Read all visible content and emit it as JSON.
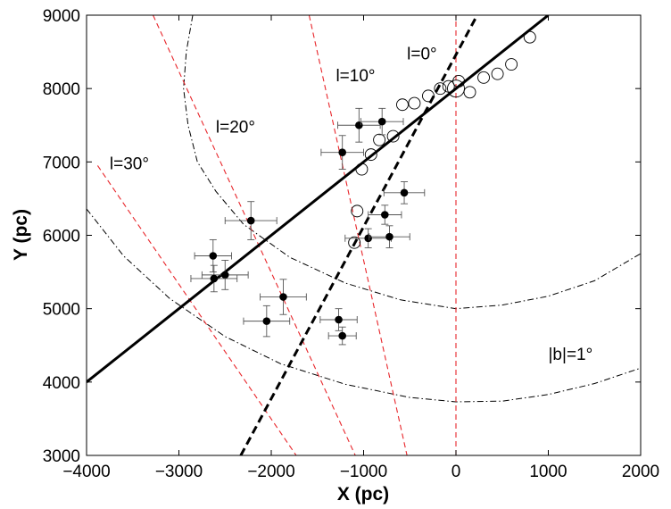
{
  "chart_data": {
    "type": "scatter",
    "xlabel": "X (pc)",
    "ylabel": "Y (pc)",
    "xlim": [
      -4000,
      2000
    ],
    "ylim": [
      3000,
      9000
    ],
    "xticks": [
      -4000,
      -3000,
      -2000,
      -1000,
      0,
      1000,
      2000
    ],
    "yticks": [
      3000,
      4000,
      5000,
      6000,
      7000,
      8000,
      9000
    ],
    "xtick_labels": [
      "−4000",
      "−3000",
      "−2000",
      "−1000",
      "0",
      "1000",
      "2000"
    ],
    "ytick_labels": [
      "3000",
      "4000",
      "5000",
      "6000",
      "7000",
      "8000",
      "9000"
    ],
    "grid": false,
    "sun": {
      "x": 0,
      "y": 8000
    },
    "annotations": [
      {
        "text": "l=0°",
        "x": -530,
        "y": 8400
      },
      {
        "text": "l=10°",
        "x": -1300,
        "y": 8100
      },
      {
        "text": "l=20°",
        "x": -2600,
        "y": 7400
      },
      {
        "text": "l=30°",
        "x": -3750,
        "y": 6900
      },
      {
        "text": "|b|=1°",
        "x": 1000,
        "y": 4300
      }
    ],
    "series": [
      {
        "kind": "filled-errorbar",
        "points": [
          {
            "x": -1050,
            "y": 7500,
            "xerr": 230,
            "yerr": 230
          },
          {
            "x": -800,
            "y": 7550,
            "xerr": 230,
            "yerr": 180
          },
          {
            "x": -1230,
            "y": 7130,
            "xerr": 230,
            "yerr": 230
          },
          {
            "x": -560,
            "y": 6580,
            "xerr": 220,
            "yerr": 150
          },
          {
            "x": -770,
            "y": 6280,
            "xerr": 180,
            "yerr": 130
          },
          {
            "x": -950,
            "y": 5960,
            "xerr": 250,
            "yerr": 130
          },
          {
            "x": -720,
            "y": 5980,
            "xerr": 220,
            "yerr": 150
          },
          {
            "x": -2220,
            "y": 6200,
            "xerr": 280,
            "yerr": 260
          },
          {
            "x": -2630,
            "y": 5720,
            "xerr": 200,
            "yerr": 220
          },
          {
            "x": -2500,
            "y": 5460,
            "xerr": 250,
            "yerr": 200
          },
          {
            "x": -2620,
            "y": 5410,
            "xerr": 250,
            "yerr": 180
          },
          {
            "x": -1870,
            "y": 5160,
            "xerr": 250,
            "yerr": 240
          },
          {
            "x": -2050,
            "y": 4830,
            "xerr": 250,
            "yerr": 210
          },
          {
            "x": -1270,
            "y": 4850,
            "xerr": 200,
            "yerr": 150
          },
          {
            "x": -1230,
            "y": 4630,
            "xerr": 150,
            "yerr": 120
          }
        ]
      },
      {
        "kind": "open-circle",
        "points": [
          {
            "x": 800,
            "y": 8700
          },
          {
            "x": 600,
            "y": 8330
          },
          {
            "x": 450,
            "y": 8200
          },
          {
            "x": 300,
            "y": 8150
          },
          {
            "x": 150,
            "y": 7950
          },
          {
            "x": 30,
            "y": 8100
          },
          {
            "x": -80,
            "y": 8030
          },
          {
            "x": -170,
            "y": 8000
          },
          {
            "x": -300,
            "y": 7900
          },
          {
            "x": -450,
            "y": 7800
          },
          {
            "x": -580,
            "y": 7780
          },
          {
            "x": -680,
            "y": 7350
          },
          {
            "x": -830,
            "y": 7300
          },
          {
            "x": -920,
            "y": 7100
          },
          {
            "x": -1020,
            "y": 6900
          },
          {
            "x": -1070,
            "y": 6330
          },
          {
            "x": -1100,
            "y": 5900
          }
        ]
      }
    ],
    "lines": [
      {
        "name": "solid-fit",
        "style": "solid",
        "x": [
          -4000,
          1000
        ],
        "y": [
          4000,
          9000
        ]
      },
      {
        "name": "dashed-fit",
        "style": "dashed",
        "x": [
          -2330,
          230
        ],
        "y": [
          3000,
          9000
        ]
      }
    ],
    "longitude_lines": [
      {
        "label": "l=0°",
        "x": [
          0,
          0
        ],
        "y": [
          3000,
          9000
        ]
      },
      {
        "label": "l=10°",
        "x": [
          -1590,
          -530
        ],
        "y": [
          9000,
          3000
        ]
      },
      {
        "label": "l=20°",
        "x": [
          -3280,
          -1090
        ],
        "y": [
          9000,
          3000
        ]
      },
      {
        "label": "l=30°",
        "x": [
          -3880,
          -1730
        ],
        "y": [
          6950,
          3000
        ]
      }
    ],
    "latitude_curves": [
      {
        "label": "inner",
        "points": [
          [
            -2850,
            9000
          ],
          [
            -2920,
            8500
          ],
          [
            -2950,
            8000
          ],
          [
            -2900,
            7500
          ],
          [
            -2800,
            7000
          ],
          [
            -2600,
            6600
          ],
          [
            -2300,
            6150
          ],
          [
            -1800,
            5700
          ],
          [
            -1200,
            5350
          ],
          [
            -600,
            5120
          ],
          [
            0,
            5000
          ],
          [
            500,
            5050
          ],
          [
            1000,
            5170
          ],
          [
            1500,
            5380
          ],
          [
            2000,
            5750
          ]
        ]
      },
      {
        "label": "outer",
        "points": [
          [
            -4000,
            6360
          ],
          [
            -3600,
            5720
          ],
          [
            -3100,
            5140
          ],
          [
            -2500,
            4620
          ],
          [
            -1900,
            4250
          ],
          [
            -1200,
            3970
          ],
          [
            -500,
            3790
          ],
          [
            0,
            3730
          ],
          [
            500,
            3740
          ],
          [
            1000,
            3830
          ],
          [
            1500,
            3980
          ],
          [
            2000,
            4190
          ]
        ]
      }
    ],
    "colors": {
      "guide": "#e8252a",
      "fit": "#000000",
      "points": "#000000",
      "errorbar": "#555555"
    }
  }
}
